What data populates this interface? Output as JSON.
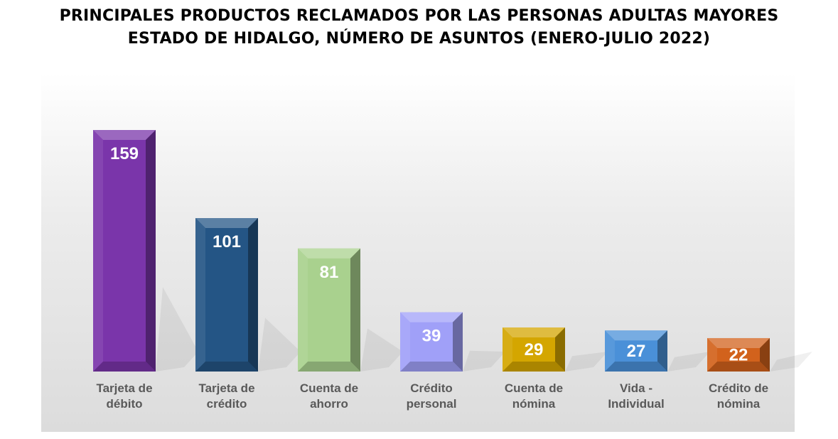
{
  "chart_data": {
    "type": "bar",
    "title": "PRINCIPALES PRODUCTOS RECLAMADOS POR LAS PERSONAS ADULTAS MAYORES",
    "subtitle": "ESTADO DE HIDALGO, NÚMERO DE ASUNTOS (ENERO-JULIO 2022)",
    "categories": [
      [
        "Tarjeta de",
        "débito"
      ],
      [
        "Tarjeta de",
        "crédito"
      ],
      [
        "Cuenta de",
        "ahorro"
      ],
      [
        "Crédito",
        "personal"
      ],
      [
        "Cuenta de",
        "nómina"
      ],
      [
        "Vida -",
        "Individual"
      ],
      [
        "Crédito de",
        "nómina"
      ]
    ],
    "values": [
      159,
      101,
      81,
      39,
      29,
      27,
      22
    ],
    "colors": [
      "#7a35aa",
      "#245585",
      "#a9d18e",
      "#a0a0f8",
      "#d4a600",
      "#4a90d8",
      "#d2621c"
    ],
    "ylim": [
      0,
      170
    ],
    "grid": false,
    "legend": "none"
  }
}
